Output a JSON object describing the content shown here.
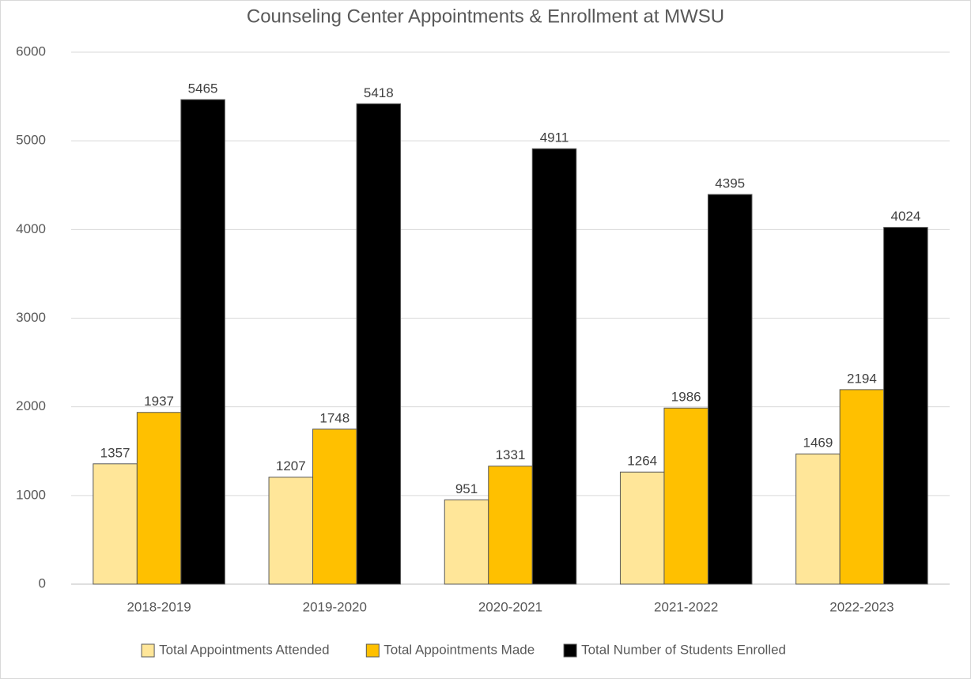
{
  "chart_data": {
    "type": "bar",
    "title": "Counseling Center Appointments & Enrollment at MWSU",
    "categories": [
      "2018-2019",
      "2019-2020",
      "2020-2021",
      "2021-2022",
      "2022-2023"
    ],
    "series": [
      {
        "name": "Total Appointments Attended",
        "color": "#FFE699",
        "values": [
          1357,
          1207,
          951,
          1264,
          1469
        ]
      },
      {
        "name": "Total Appointments Made",
        "color": "#FFC000",
        "values": [
          1937,
          1748,
          1331,
          1986,
          2194
        ]
      },
      {
        "name": "Total Number of Students Enrolled",
        "color": "#000000",
        "values": [
          5465,
          5418,
          4911,
          4395,
          4024
        ]
      }
    ],
    "ylim": [
      0,
      6000
    ],
    "yticks": [
      0,
      1000,
      2000,
      3000,
      4000,
      5000,
      6000
    ],
    "grid": true,
    "legend": "bottom"
  }
}
